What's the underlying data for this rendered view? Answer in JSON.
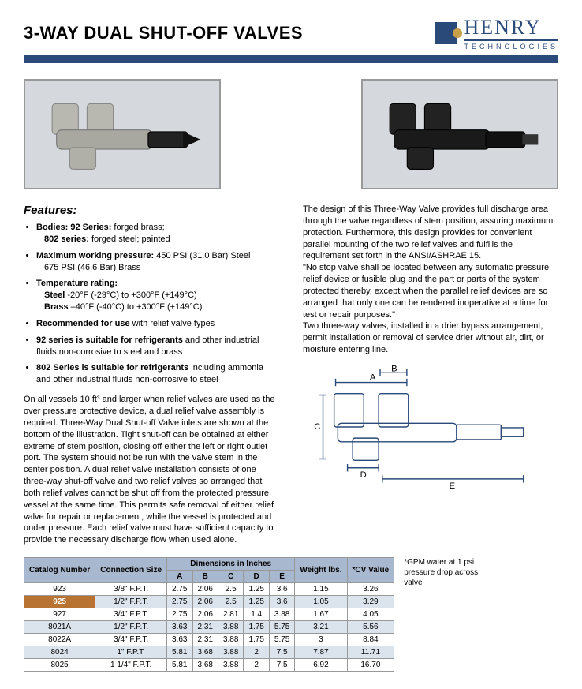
{
  "title": "3-WAY DUAL SHUT-OFF VALVES",
  "logo": {
    "brand": "HENRY",
    "sub": "TECHNOLOGIES"
  },
  "colors": {
    "blue": "#2a4a7a",
    "gold": "#c8a04a",
    "th_bg": "#a8b8ce",
    "row_even": "#dbe3ec",
    "highlight": "#b87333",
    "border": "#999999",
    "img_bg": "#d5d8dc"
  },
  "features_heading": "Features:",
  "features": [
    {
      "bold": "Bodies: 92 Series:",
      "text": " forged brass;",
      "indent": "802 series: forged steel; painted",
      "indent_bold_prefix": "802 series:"
    },
    {
      "bold": "Maximum working pressure:",
      "text": " 450 PSI (31.0 Bar) Steel",
      "indent": "675 PSI (46.6 Bar) Brass"
    },
    {
      "bold": "Temperature rating:",
      "text": "",
      "line2": "Steel -20°F (-29°C) to +300°F (+149°C)",
      "line3": "Brass –40°F (-40°C) to +300°F (+149°C)"
    },
    {
      "bold": "Recommended for use",
      "text": " with relief valve types"
    },
    {
      "bold": "92 series is suitable for refrigerants",
      "text": " and other industrial fluids non-corrosive to steel and brass"
    },
    {
      "bold": "802 Series is suitable for refrigerants",
      "text": " including ammonia and other industrial fluids non-corrosive to steel"
    }
  ],
  "left_body": "On all vessels 10 ft³ and larger when relief valves are used as the over pressure protective device, a dual relief valve assembly is required. Three-Way Dual Shut-off Valve inlets are shown at the bottom of the illustration. Tight shut-off can be obtained at either extreme of stem position, closing off either the left or right outlet port. The system should not be run with the valve stem in the center position. A dual relief valve installation consists of one three-way shut-off valve and two relief valves so arranged that both relief valves cannot be shut off from the protected pressure vessel at the same time. This permits safe removal of either relief valve for repair or replacement, while the vessel is protected and under pressure. Each relief valve must have sufficient capacity to provide the necessary discharge flow when used alone.",
  "right_body": "The design of this Three-Way Valve provides full discharge area through the valve regardless of stem position, assuring maximum protection. Furthermore, this design provides for convenient parallel mounting of the two relief valves and fulfills the requirement set forth in the ANSI/ASHRAE 15.\n\"No stop valve shall be located between any automatic pressure relief device or fusible plug and the part or parts of the system protected thereby, except when the parallel relief devices are so arranged that only one can be rendered inoperative at a time for test or repair purposes.\"\nTwo three-way valves, installed in a drier bypass arrangement, permit installation or removal of service drier without air, dirt, or moisture entering line.",
  "diagram_labels": {
    "A": "A",
    "B": "B",
    "C": "C",
    "D": "D",
    "E": "E"
  },
  "table": {
    "headers": {
      "catalog": "Catalog Number",
      "conn": "Connection Size",
      "dims": "Dimensions in Inches",
      "A": "A",
      "B": "B",
      "C": "C",
      "D": "D",
      "E": "E",
      "weight": "Weight lbs.",
      "cv": "*CV Value"
    },
    "rows": [
      {
        "cat": "923",
        "conn": "3/8\" F.P.T.",
        "A": "2.75",
        "B": "2.06",
        "C": "2.5",
        "D": "1.25",
        "E": "3.6",
        "wt": "1.15",
        "cv": "3.26",
        "even": false
      },
      {
        "cat": "925",
        "conn": "1/2\" F.P.T.",
        "A": "2.75",
        "B": "2.06",
        "C": "2.5",
        "D": "1.25",
        "E": "3.6",
        "wt": "1.05",
        "cv": "3.29",
        "even": true,
        "highlight": true
      },
      {
        "cat": "927",
        "conn": "3/4\" F.P.T.",
        "A": "2.75",
        "B": "2.06",
        "C": "2.81",
        "D": "1.4",
        "E": "3.88",
        "wt": "1.67",
        "cv": "4.05",
        "even": false
      },
      {
        "cat": "8021A",
        "conn": "1/2\" F.P.T.",
        "A": "3.63",
        "B": "2.31",
        "C": "3.88",
        "D": "1.75",
        "E": "5.75",
        "wt": "3.21",
        "cv": "5.56",
        "even": true
      },
      {
        "cat": "8022A",
        "conn": "3/4\" F.P.T.",
        "A": "3.63",
        "B": "2.31",
        "C": "3.88",
        "D": "1.75",
        "E": "5.75",
        "wt": "3",
        "cv": "8.84",
        "even": false
      },
      {
        "cat": "8024",
        "conn": "1\" F.P.T.",
        "A": "5.81",
        "B": "3.68",
        "C": "3.88",
        "D": "2",
        "E": "7.5",
        "wt": "7.87",
        "cv": "11.71",
        "even": true
      },
      {
        "cat": "8025",
        "conn": "1 1/4\" F.P.T.",
        "A": "5.81",
        "B": "3.68",
        "C": "3.88",
        "D": "2",
        "E": "7.5",
        "wt": "6.92",
        "cv": "16.70",
        "even": false
      }
    ]
  },
  "footnote": "*GPM water at 1 psi pressure drop across valve"
}
